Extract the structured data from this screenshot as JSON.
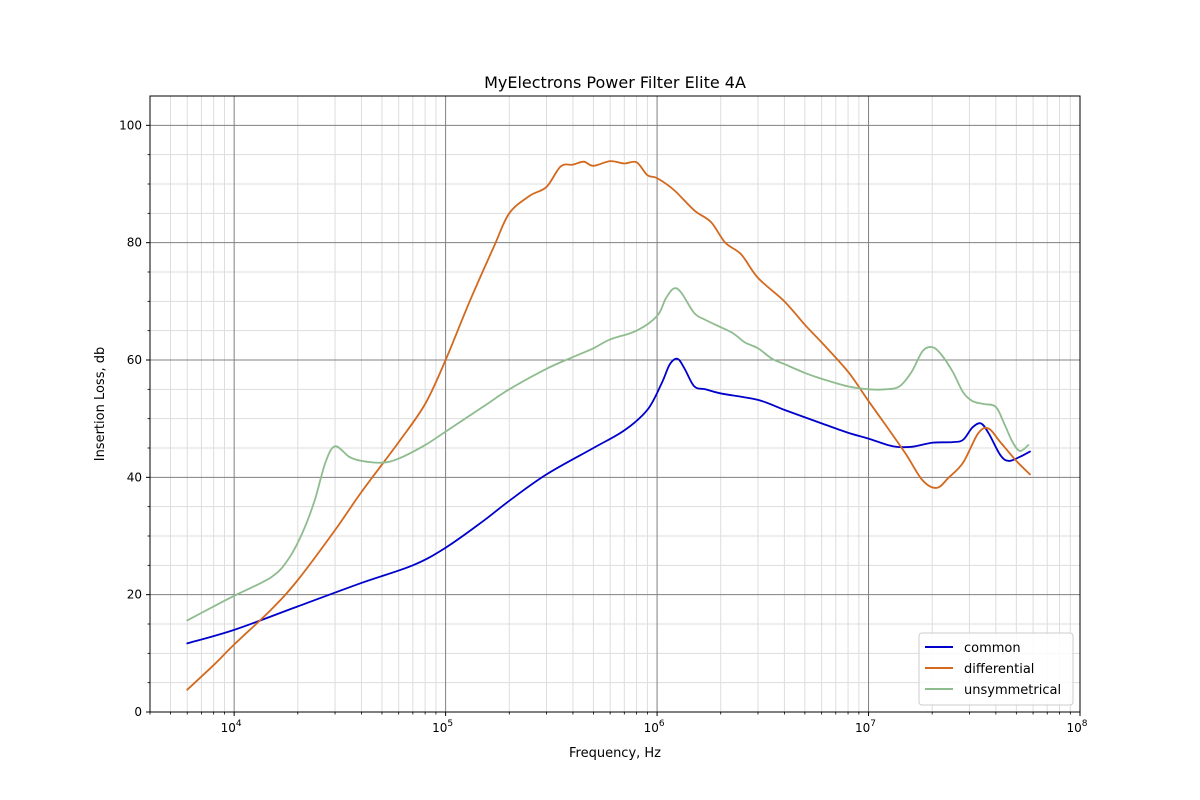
{
  "chart_data": {
    "type": "line",
    "title": "MyElectrons Power Filter Elite 4A",
    "xlabel": "Frequency, Hz",
    "ylabel": "Insertion Loss, db",
    "xscale": "log",
    "xlim": [
      4000,
      100000000
    ],
    "ylim": [
      0,
      105
    ],
    "x_ticks": [
      {
        "value": 10000,
        "base": "10",
        "exp": "4"
      },
      {
        "value": 100000,
        "base": "10",
        "exp": "5"
      },
      {
        "value": 1000000,
        "base": "10",
        "exp": "6"
      },
      {
        "value": 10000000,
        "base": "10",
        "exp": "7"
      },
      {
        "value": 100000000,
        "base": "10",
        "exp": "8"
      }
    ],
    "y_ticks": [
      0,
      20,
      40,
      60,
      80,
      100
    ],
    "grid": true,
    "legend_position": "bottom-right",
    "series": [
      {
        "name": "common",
        "color": "#0000cc",
        "points": [
          [
            6000,
            11.7
          ],
          [
            10000,
            14
          ],
          [
            20000,
            18
          ],
          [
            40000,
            22
          ],
          [
            70000,
            25
          ],
          [
            100000,
            28
          ],
          [
            150000,
            32.5
          ],
          [
            200000,
            36
          ],
          [
            300000,
            40.5
          ],
          [
            500000,
            45
          ],
          [
            700000,
            48
          ],
          [
            900000,
            51.5
          ],
          [
            1050000,
            56
          ],
          [
            1150000,
            59.3
          ],
          [
            1250000,
            60.2
          ],
          [
            1350000,
            58.5
          ],
          [
            1500000,
            55.5
          ],
          [
            1700000,
            55
          ],
          [
            2000000,
            54.3
          ],
          [
            3000000,
            53.2
          ],
          [
            4000000,
            51.5
          ],
          [
            6000000,
            49.2
          ],
          [
            8000000,
            47.6
          ],
          [
            10000000,
            46.6
          ],
          [
            13000000,
            45.3
          ],
          [
            16000000,
            45.2
          ],
          [
            20000000,
            45.9
          ],
          [
            25000000,
            46
          ],
          [
            28000000,
            46.4
          ],
          [
            31000000,
            48.5
          ],
          [
            34000000,
            49.2
          ],
          [
            37000000,
            47.5
          ],
          [
            42000000,
            43.8
          ],
          [
            46000000,
            42.8
          ],
          [
            52000000,
            43.5
          ],
          [
            58000000,
            44.4
          ]
        ]
      },
      {
        "name": "differential",
        "color": "#d2691e",
        "points": [
          [
            6000,
            3.8
          ],
          [
            8000,
            8
          ],
          [
            10000,
            11.5
          ],
          [
            15000,
            17.5
          ],
          [
            20000,
            22.5
          ],
          [
            30000,
            31
          ],
          [
            40000,
            37.5
          ],
          [
            60000,
            46
          ],
          [
            80000,
            52.5
          ],
          [
            100000,
            60
          ],
          [
            130000,
            70
          ],
          [
            170000,
            79.5
          ],
          [
            200000,
            85
          ],
          [
            250000,
            88
          ],
          [
            300000,
            89.5
          ],
          [
            350000,
            93
          ],
          [
            400000,
            93.3
          ],
          [
            450000,
            93.8
          ],
          [
            500000,
            93.1
          ],
          [
            600000,
            93.9
          ],
          [
            700000,
            93.5
          ],
          [
            800000,
            93.7
          ],
          [
            900000,
            91.5
          ],
          [
            1000000,
            91
          ],
          [
            1200000,
            89
          ],
          [
            1500000,
            85.5
          ],
          [
            1800000,
            83.5
          ],
          [
            2100000,
            80
          ],
          [
            2500000,
            78
          ],
          [
            3000000,
            74
          ],
          [
            4000000,
            70
          ],
          [
            5000000,
            66
          ],
          [
            6000000,
            63
          ],
          [
            8000000,
            58
          ],
          [
            10000000,
            53
          ],
          [
            12000000,
            49
          ],
          [
            15000000,
            44
          ],
          [
            18000000,
            39.5
          ],
          [
            21000000,
            38.2
          ],
          [
            24000000,
            40
          ],
          [
            28000000,
            42.5
          ],
          [
            33000000,
            47.5
          ],
          [
            37000000,
            48.3
          ],
          [
            42000000,
            46
          ],
          [
            50000000,
            42.8
          ],
          [
            58000000,
            40.5
          ]
        ]
      },
      {
        "name": "unsymmetrical",
        "color": "#8fbc8f",
        "points": [
          [
            6000,
            15.6
          ],
          [
            8000,
            18
          ],
          [
            10000,
            19.8
          ],
          [
            15000,
            23
          ],
          [
            18000,
            26
          ],
          [
            21000,
            30.5
          ],
          [
            24000,
            36
          ],
          [
            27000,
            42.5
          ],
          [
            30000,
            45.3
          ],
          [
            35000,
            43.5
          ],
          [
            40000,
            42.8
          ],
          [
            50000,
            42.5
          ],
          [
            60000,
            43.2
          ],
          [
            80000,
            45.5
          ],
          [
            100000,
            47.8
          ],
          [
            150000,
            52
          ],
          [
            200000,
            55
          ],
          [
            300000,
            58.5
          ],
          [
            400000,
            60.5
          ],
          [
            500000,
            62
          ],
          [
            600000,
            63.5
          ],
          [
            800000,
            65
          ],
          [
            1000000,
            67.5
          ],
          [
            1100000,
            70.5
          ],
          [
            1200000,
            72.2
          ],
          [
            1300000,
            71.5
          ],
          [
            1500000,
            68
          ],
          [
            1700000,
            66.8
          ],
          [
            2000000,
            65.6
          ],
          [
            2300000,
            64.5
          ],
          [
            2600000,
            63
          ],
          [
            3000000,
            62
          ],
          [
            3500000,
            60.2
          ],
          [
            4000000,
            59.3
          ],
          [
            5000000,
            57.8
          ],
          [
            6000000,
            56.8
          ],
          [
            8000000,
            55.5
          ],
          [
            10000000,
            55
          ],
          [
            12000000,
            55
          ],
          [
            14000000,
            55.5
          ],
          [
            16000000,
            58
          ],
          [
            18000000,
            61.5
          ],
          [
            20000000,
            62.2
          ],
          [
            22000000,
            61
          ],
          [
            25000000,
            58
          ],
          [
            28000000,
            54.5
          ],
          [
            31000000,
            53
          ],
          [
            35000000,
            52.5
          ],
          [
            40000000,
            52
          ],
          [
            44000000,
            49
          ],
          [
            48000000,
            46
          ],
          [
            52000000,
            44.5
          ],
          [
            57000000,
            45.5
          ]
        ]
      }
    ]
  }
}
